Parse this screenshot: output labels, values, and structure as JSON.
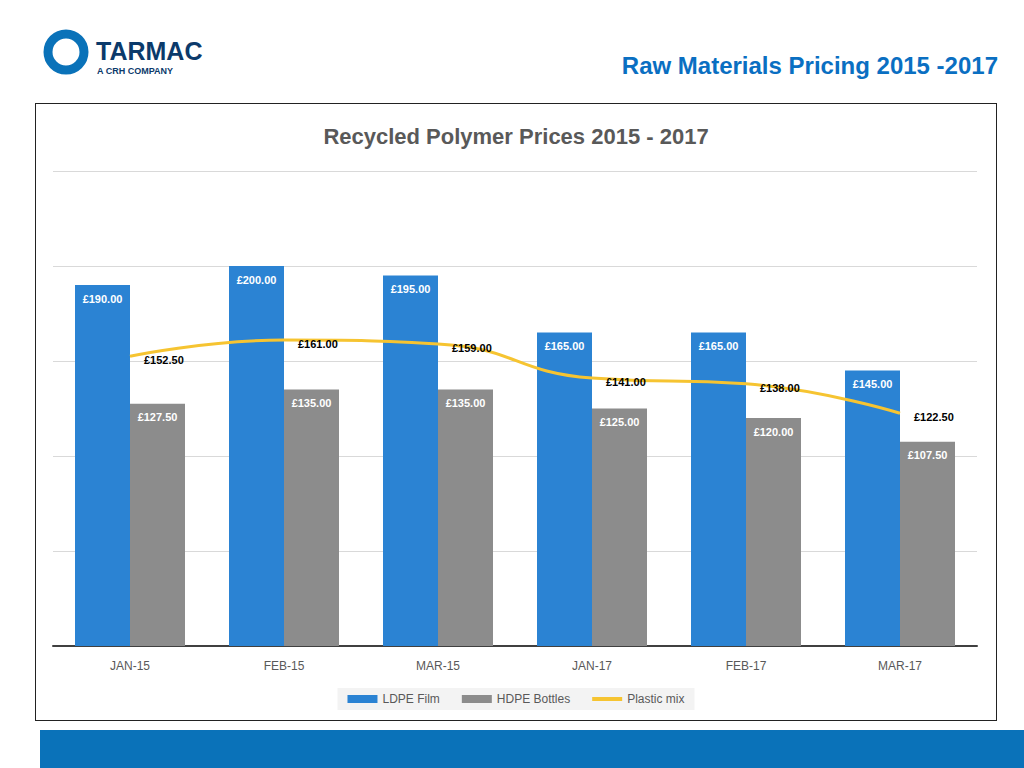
{
  "header": {
    "logo": "TARMAC",
    "logo_subtitle": "A CRH COMPANY",
    "title": "Raw Materials Pricing 2015 -2017"
  },
  "chart_data": {
    "type": "bar",
    "title": "Recycled Polymer Prices 2015 - 2017",
    "categories": [
      "JAN-15",
      "FEB-15",
      "MAR-15",
      "JAN-17",
      "FEB-17",
      "MAR-17"
    ],
    "series": [
      {
        "name": "LDPE Film",
        "color": "#2b83d3",
        "values": [
          190,
          200,
          195,
          165,
          165,
          145
        ],
        "value_labels": [
          "£190.00",
          "£200.00",
          "£195.00",
          "£165.00",
          "£165.00",
          "£145.00"
        ]
      },
      {
        "name": "HDPE Bottles",
        "color": "#8c8c8c",
        "values": [
          127.5,
          135,
          135,
          125,
          120,
          107.5
        ],
        "value_labels": [
          "£127.50",
          "£135.00",
          "£135.00",
          "£125.00",
          "£120.00",
          "£107.50"
        ]
      },
      {
        "name": "Plastic mix",
        "type": "line",
        "color": "#f6c431",
        "marker": "none",
        "values": [
          152.5,
          161,
          159,
          141,
          138,
          122.5
        ],
        "value_labels": [
          "£152.50",
          "£161.00",
          "£159.00",
          "£141.00",
          "£138.00",
          "£122.50"
        ]
      }
    ],
    "ylim": [
      0,
      250
    ],
    "yticks": [
      0,
      50,
      100,
      150,
      200,
      250
    ],
    "grid": true,
    "legend": "bottom",
    "data_labels": true,
    "tick_labels": "x"
  }
}
